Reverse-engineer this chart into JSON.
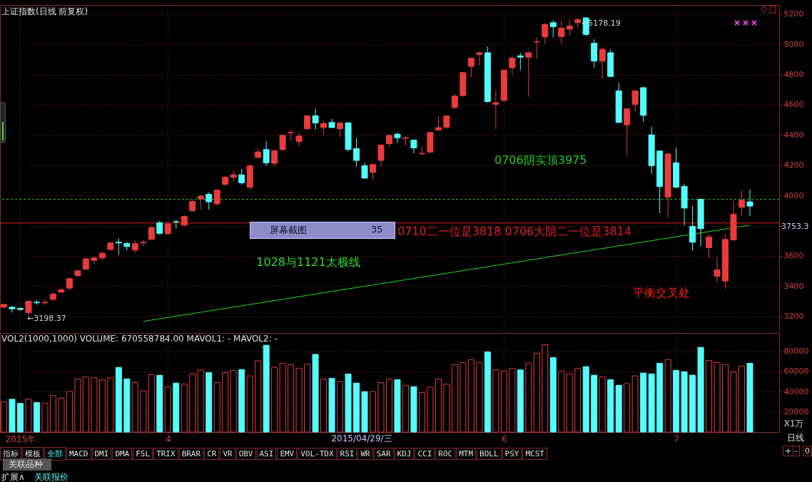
{
  "chart_data": [
    {
      "type": "candlestick",
      "title": "上证指数(日线 前复权)",
      "categories": [
        null,
        null,
        null,
        null,
        null,
        null,
        null,
        null,
        null,
        null,
        null,
        null,
        null,
        null,
        null,
        null,
        null,
        null,
        null,
        null,
        null,
        null,
        null,
        null,
        null,
        null,
        null,
        null,
        null,
        null,
        null,
        null,
        null,
        null,
        null,
        null,
        null,
        null,
        null,
        null,
        null,
        null,
        null,
        null,
        null,
        null,
        null,
        null,
        null,
        null,
        null,
        null,
        null,
        null,
        null,
        null,
        null,
        null,
        null,
        null,
        null,
        null,
        null,
        null,
        null,
        null,
        null,
        null,
        null,
        null,
        null,
        null,
        null,
        null,
        null,
        null,
        null,
        null,
        null,
        null,
        null,
        null,
        null,
        null,
        null,
        null,
        null,
        null,
        null,
        null,
        null,
        null
      ],
      "ohlc": [
        [
          3261,
          3285,
          3253,
          3280
        ],
        [
          3261,
          3269,
          3225,
          3250
        ],
        [
          3253,
          3261,
          3238,
          3246
        ],
        [
          3225,
          3304,
          3198.37,
          3301
        ],
        [
          3294,
          3308,
          3277,
          3290
        ],
        [
          3290,
          3313,
          3277,
          3294
        ],
        [
          3313,
          3356,
          3304,
          3348
        ],
        [
          3360,
          3387,
          3356,
          3376
        ],
        [
          3387,
          3458,
          3379,
          3450
        ],
        [
          3470,
          3508,
          3461,
          3502
        ],
        [
          3513,
          3587,
          3505,
          3581
        ],
        [
          3571,
          3599,
          3549,
          3587
        ],
        [
          3587,
          3628,
          3571,
          3618
        ],
        [
          3642,
          3691,
          3639,
          3686
        ],
        [
          3691,
          3717,
          3607,
          3686
        ],
        [
          3683,
          3694,
          3639,
          3662
        ],
        [
          3639,
          3702,
          3618,
          3681
        ],
        [
          3688,
          3706,
          3665,
          3691
        ],
        [
          3710,
          3796,
          3706,
          3788
        ],
        [
          3820,
          3832,
          3741,
          3749
        ],
        [
          3746,
          3820,
          3744,
          3812
        ],
        [
          3827,
          3838,
          3780,
          3826
        ],
        [
          3804,
          3867,
          3796,
          3862
        ],
        [
          3898,
          3969,
          3895,
          3960
        ],
        [
          3977,
          4005,
          3906,
          3996
        ],
        [
          4008,
          4021,
          3906,
          3958
        ],
        [
          3945,
          4040,
          3930,
          4036
        ],
        [
          4074,
          4131,
          4059,
          4121
        ],
        [
          4121,
          4165,
          4095,
          4137
        ],
        [
          4137,
          4176,
          4071,
          4084
        ],
        [
          4055,
          4205,
          4037,
          4197
        ],
        [
          4252,
          4315,
          4244,
          4288
        ],
        [
          4304,
          4359,
          4197,
          4216
        ],
        [
          4213,
          4304,
          4192,
          4296
        ],
        [
          4304,
          4401,
          4294,
          4398
        ],
        [
          4414,
          4436,
          4362,
          4417
        ],
        [
          4357,
          4417,
          4323,
          4393
        ],
        [
          4441,
          4530,
          4436,
          4527
        ],
        [
          4527,
          4574,
          4436,
          4480
        ],
        [
          4449,
          4493,
          4401,
          4477
        ],
        [
          4483,
          4508,
          4449,
          4449
        ],
        [
          4441,
          4488,
          4389,
          4480
        ],
        [
          4480,
          4488,
          4291,
          4304
        ],
        [
          4310,
          4378,
          4192,
          4232
        ],
        [
          4197,
          4216,
          4110,
          4115
        ],
        [
          4153,
          4213,
          4103,
          4205
        ],
        [
          4232,
          4338,
          4192,
          4334
        ],
        [
          4342,
          4405,
          4323,
          4398
        ],
        [
          4406,
          4417,
          4346,
          4382
        ],
        [
          4378,
          4393,
          4331,
          4382
        ],
        [
          4367,
          4370,
          4279,
          4315
        ],
        [
          4276,
          4323,
          4268,
          4279
        ],
        [
          4287,
          4420,
          4283,
          4417
        ],
        [
          4433,
          4522,
          4433,
          4449
        ],
        [
          4452,
          4530,
          4441,
          4527
        ],
        [
          4582,
          4669,
          4571,
          4657
        ],
        [
          4661,
          4818,
          4653,
          4813
        ],
        [
          4854,
          4912,
          4782,
          4908
        ],
        [
          4933,
          4955,
          4860,
          4944
        ],
        [
          4944,
          4986,
          4614,
          4621
        ],
        [
          4603,
          4692,
          4441,
          4614
        ],
        [
          4629,
          4834,
          4618,
          4829
        ],
        [
          4845,
          4923,
          4798,
          4908
        ],
        [
          4924,
          4944,
          4829,
          4915
        ],
        [
          4915,
          4955,
          4653,
          4944
        ],
        [
          5015,
          5046,
          4904,
          5018
        ],
        [
          5049,
          5140,
          5002,
          5132
        ],
        [
          5143,
          5159,
          5046,
          5117
        ],
        [
          5051,
          5159,
          5007,
          5106
        ],
        [
          5101,
          5159,
          5054,
          5121
        ],
        [
          5143,
          5176,
          5109,
          5164
        ],
        [
          5175,
          5178.19,
          5054,
          5065
        ],
        [
          5007,
          5033,
          4845,
          4889
        ],
        [
          4889,
          4980,
          4771,
          4967
        ],
        [
          4944,
          4967,
          4782,
          4787
        ],
        [
          4692,
          4747,
          4480,
          4483
        ],
        [
          4467,
          4574,
          4263,
          4574
        ],
        [
          4603,
          4692,
          4555,
          4692
        ],
        [
          4713,
          4719,
          4488,
          4530
        ],
        [
          4401,
          4456,
          4142,
          4197
        ],
        [
          4294,
          4299,
          3883,
          4059
        ],
        [
          3988,
          4279,
          3851,
          4275
        ],
        [
          4216,
          4315,
          4048,
          4055
        ],
        [
          4060,
          4079,
          3801,
          3917
        ],
        [
          3796,
          3930,
          3634,
          3691
        ],
        [
          3975,
          3980,
          3662,
          3780
        ],
        [
          3655,
          3744,
          3587,
          3725
        ],
        [
          3466,
          3592,
          3426,
          3508
        ],
        [
          3434,
          3744,
          3383,
          3710
        ],
        [
          3706,
          3958,
          3702,
          3875
        ],
        [
          3922,
          4032,
          3864,
          3969
        ],
        [
          3958,
          4040,
          3864,
          3930
        ]
      ],
      "series": [
        {
          "type": "line",
          "color": "#22dd22",
          "values": [
            null,
            null,
            null,
            null,
            null,
            null,
            null,
            null,
            null,
            null,
            null,
            null,
            null,
            null,
            null,
            null,
            null,
            3167,
            3176,
            3184,
            3193,
            3202,
            3210,
            3219,
            3227,
            3236,
            3245,
            3253,
            3262,
            3270,
            3279,
            3288,
            3296,
            3305,
            3313,
            3322,
            3331,
            3339,
            3348,
            3357,
            3365,
            3374,
            3382,
            3391,
            3400,
            3408,
            3417,
            3425,
            3434,
            3443,
            3451,
            3460,
            3468,
            3477,
            3486,
            3494,
            3503,
            3512,
            3520,
            3529,
            3537,
            3546,
            3555,
            3563,
            3572,
            3580,
            3589,
            3598,
            3606,
            3615,
            3623,
            3632,
            3641,
            3649,
            3658,
            3667,
            3675,
            3684,
            3692,
            3701,
            3710,
            3718,
            3727,
            3735,
            3744,
            3753,
            3761,
            3770,
            3779,
            3787,
            3796,
            3804
          ]
        }
      ],
      "ylim": [
        3100,
        5260
      ],
      "yticks": [
        3200,
        3400,
        3600,
        {
          "value": 3800,
          "label": null
        },
        4000,
        4200,
        4400,
        4600,
        4800,
        5000,
        5200
      ],
      "grid": true,
      "tick_labels": "y",
      "ref_lines": [
        {
          "axis": "y",
          "value": 3975,
          "label": "0706阴实顶3975",
          "color": "#22cc22",
          "line_style": "dashed"
        },
        {
          "axis": "y",
          "value": 3818,
          "label": "0710二一位是3818 0706大阴二一位是3814",
          "color": "#e02020",
          "line_style": "solid"
        }
      ],
      "annotations": [
        "←3198.37",
        "←5178.19",
        "1028与1121太极线",
        "平衡交叉处",
        "3753.3"
      ]
    },
    {
      "type": "bar",
      "title": "VOL2(1000,1000) VOLUME: 670558784.00 MAVOL1: - MAVOL2: -",
      "ylabel": "X1万",
      "categories": [
        null,
        null,
        "2015年",
        null,
        null,
        null,
        null,
        null,
        null,
        null,
        null,
        null,
        null,
        null,
        null,
        null,
        null,
        null,
        null,
        null,
        "4",
        null,
        null,
        null,
        null,
        null,
        null,
        null,
        null,
        null,
        null,
        null,
        null,
        null,
        null,
        null,
        null,
        null,
        null,
        null,
        null,
        null,
        null,
        null,
        null,
        null,
        null,
        null,
        null,
        null,
        null,
        null,
        null,
        null,
        null,
        null,
        null,
        null,
        null,
        null,
        null,
        "6",
        null,
        null,
        null,
        null,
        null,
        null,
        null,
        null,
        null,
        null,
        null,
        null,
        null,
        null,
        null,
        null,
        null,
        null,
        null,
        null,
        "7",
        null,
        null,
        null,
        null,
        null,
        null,
        null,
        null,
        null
      ],
      "values": [
        29900,
        32500,
        28400,
        32500,
        29200,
        28400,
        36100,
        33500,
        40200,
        52400,
        54400,
        53700,
        51600,
        53700,
        64000,
        52600,
        49000,
        40800,
        56800,
        56200,
        44600,
        48500,
        47500,
        57500,
        61400,
        58800,
        49000,
        58800,
        60900,
        61900,
        55500,
        70400,
        85900,
        64000,
        67900,
        66600,
        63200,
        67300,
        76900,
        52400,
        53100,
        49800,
        57500,
        48500,
        40000,
        40000,
        49000,
        52400,
        51800,
        46300,
        45000,
        39000,
        44500,
        52400,
        47400,
        66800,
        68900,
        71500,
        68900,
        79300,
        61500,
        60200,
        62800,
        61500,
        68100,
        77800,
        86400,
        73800,
        60200,
        57600,
        62800,
        64700,
        56300,
        54500,
        51800,
        46300,
        47900,
        55500,
        58400,
        57600,
        68100,
        71500,
        61000,
        59700,
        56300,
        83800,
        70900,
        68900,
        66800,
        59700,
        65500,
        68100
      ],
      "colors": [
        "#e83c3c",
        "#54fcfc",
        "#54fcfc",
        "#e83c3c",
        "#54fcfc",
        "#e83c3c",
        "#e83c3c",
        "#e83c3c",
        "#e83c3c",
        "#e83c3c",
        "#e83c3c",
        "#e83c3c",
        "#e83c3c",
        "#e83c3c",
        "#54fcfc",
        "#54fcfc",
        "#e83c3c",
        "#e83c3c",
        "#e83c3c",
        "#54fcfc",
        "#e83c3c",
        "#54fcfc",
        "#e83c3c",
        "#e83c3c",
        "#e83c3c",
        "#54fcfc",
        "#e83c3c",
        "#e83c3c",
        "#e83c3c",
        "#54fcfc",
        "#e83c3c",
        "#e83c3c",
        "#54fcfc",
        "#e83c3c",
        "#e83c3c",
        "#e83c3c",
        "#e83c3c",
        "#e83c3c",
        "#54fcfc",
        "#e83c3c",
        "#54fcfc",
        "#e83c3c",
        "#54fcfc",
        "#54fcfc",
        "#54fcfc",
        "#e83c3c",
        "#e83c3c",
        "#e83c3c",
        "#54fcfc",
        "#e83c3c",
        "#54fcfc",
        "#e83c3c",
        "#e83c3c",
        "#e83c3c",
        "#e83c3c",
        "#e83c3c",
        "#e83c3c",
        "#e83c3c",
        "#e83c3c",
        "#54fcfc",
        "#e83c3c",
        "#e83c3c",
        "#e83c3c",
        "#54fcfc",
        "#e83c3c",
        "#e83c3c",
        "#e83c3c",
        "#54fcfc",
        "#e83c3c",
        "#e83c3c",
        "#e83c3c",
        "#54fcfc",
        "#54fcfc",
        "#e83c3c",
        "#54fcfc",
        "#54fcfc",
        "#e83c3c",
        "#e83c3c",
        "#54fcfc",
        "#54fcfc",
        "#54fcfc",
        "#e83c3c",
        "#54fcfc",
        "#54fcfc",
        "#54fcfc",
        "#54fcfc",
        "#e83c3c",
        "#e83c3c",
        "#e83c3c",
        "#e83c3c",
        "#e83c3c",
        "#54fcfc"
      ],
      "ylim": [
        0,
        98000
      ],
      "yticks": [
        20000,
        40000,
        60000,
        80000
      ],
      "grid": true,
      "annotations": [
        "2015/04/29/三"
      ]
    },
    {
      "type": "other",
      "annotations": [
        "指标",
        "模板",
        "全部",
        "MACD",
        "DMI",
        "DMA",
        "FSL",
        "TRIX",
        "BRAR",
        "CR",
        "VR",
        "OBV",
        "ASI",
        "EMV",
        "VOL-TDX",
        "RSI",
        "WR",
        "SAR",
        "KDJ",
        "CCI",
        "ROC",
        "MTM",
        "BOLL",
        "PSY",
        "MCST",
        "日线",
        "+",
        "-",
        "0",
        "关联品种",
        "扩展∧",
        "关联报价",
        "屏幕截图",
        "35"
      ]
    }
  ]
}
